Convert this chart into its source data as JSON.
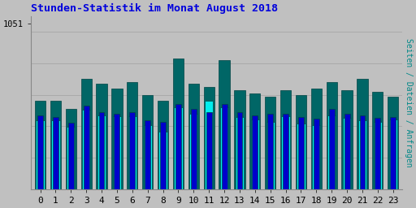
{
  "title": "Stunden-Statistik im Monat August 2018",
  "title_color": "#0000dd",
  "title_fontsize": 9.5,
  "ylabel_right": "Seiten / Dateien / Anfragen",
  "ylabel_right_color": "#008888",
  "ylabel_right_fontsize": 7,
  "xlabel_fontsize": 8,
  "ytick_label": "1051",
  "ytick_fontsize": 7.5,
  "background_color": "#c0c0c0",
  "plot_bg_color": "#c0c0c0",
  "bar_width": 0.7,
  "hours": [
    0,
    1,
    2,
    3,
    4,
    5,
    6,
    7,
    8,
    9,
    10,
    11,
    12,
    13,
    14,
    15,
    16,
    17,
    18,
    19,
    20,
    21,
    22,
    23
  ],
  "color_green": "#006666",
  "color_blue": "#0000cc",
  "color_cyan": "#00eeee",
  "bar_border_color": "#004444",
  "grid_color": "#aaaaaa",
  "series_green": [
    560,
    560,
    510,
    700,
    670,
    640,
    680,
    600,
    560,
    830,
    670,
    650,
    820,
    630,
    610,
    590,
    630,
    600,
    640,
    680,
    630,
    700,
    620,
    590
  ],
  "series_blue": [
    470,
    460,
    420,
    530,
    490,
    480,
    490,
    440,
    430,
    540,
    510,
    490,
    540,
    490,
    470,
    480,
    480,
    460,
    450,
    510,
    480,
    470,
    455,
    460
  ],
  "series_cyan": [
    440,
    440,
    395,
    505,
    470,
    465,
    465,
    405,
    365,
    520,
    480,
    560,
    520,
    460,
    445,
    430,
    465,
    415,
    405,
    470,
    455,
    440,
    430,
    445
  ],
  "ylim_min": 0,
  "ylim_max": 1100,
  "ytick_val": 1051,
  "figsize": [
    5.12,
    2.56
  ],
  "dpi": 100
}
